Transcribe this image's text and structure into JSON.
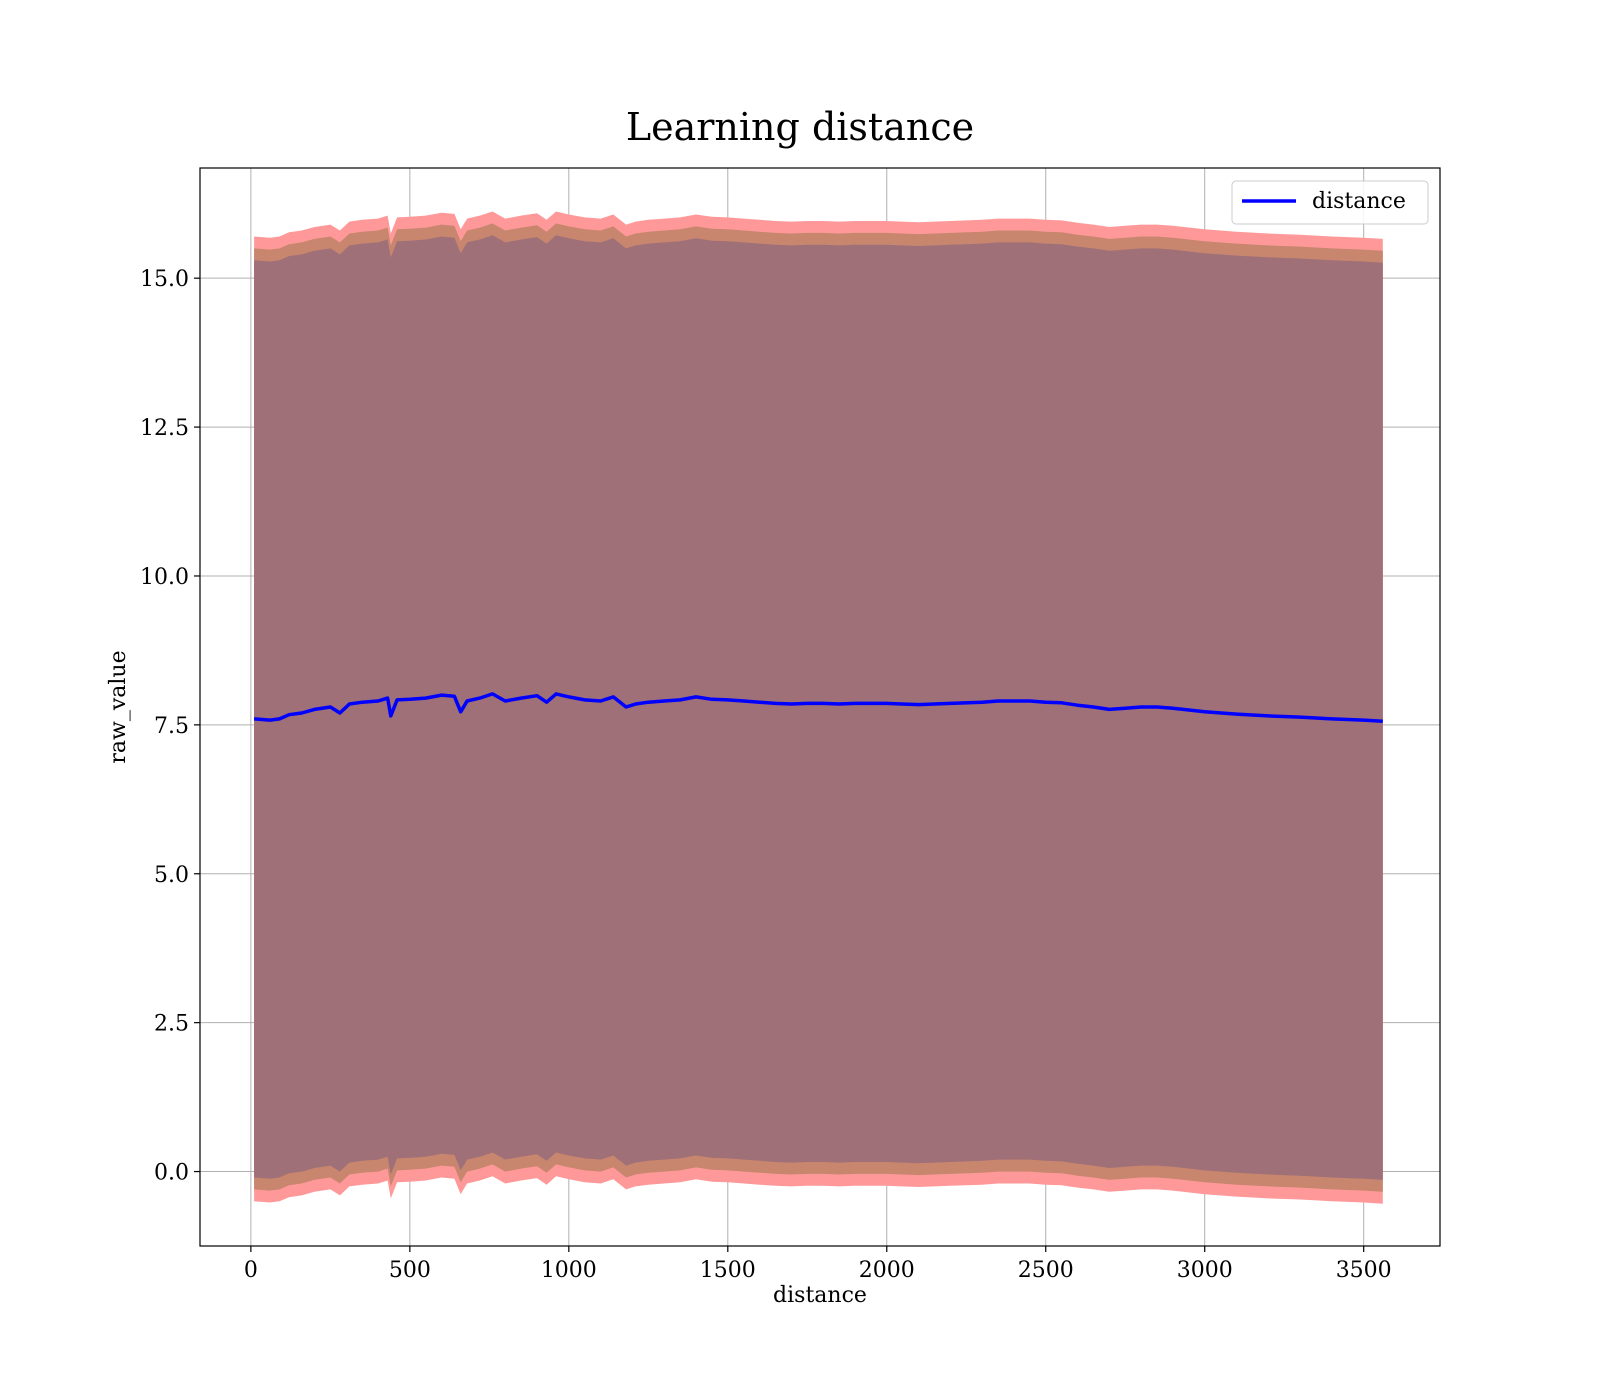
{
  "chart_data": {
    "type": "line",
    "title": "Learning distance",
    "xlabel": "distance",
    "ylabel": "raw_value",
    "xlim": [
      -160,
      3740
    ],
    "ylim": [
      -1.25,
      16.85
    ],
    "xticks": [
      0,
      500,
      1000,
      1500,
      2000,
      2500,
      3000,
      3500
    ],
    "xtick_labels": [
      "0",
      "500",
      "1000",
      "1500",
      "2000",
      "2500",
      "3000",
      "3500"
    ],
    "yticks": [
      0.0,
      2.5,
      5.0,
      7.5,
      10.0,
      12.5,
      15.0
    ],
    "ytick_labels": [
      "0.0",
      "2.5",
      "5.0",
      "7.5",
      "10.0",
      "12.5",
      "15.0"
    ],
    "grid": true,
    "legend_position": "top-right",
    "colors": {
      "line": "#0000ff",
      "band_outer": "#ff9999",
      "band_middle": "#c8866e",
      "band_inner": "#a07078"
    },
    "series": [
      {
        "name": "distance",
        "x": [
          10,
          60,
          90,
          120,
          160,
          200,
          250,
          280,
          310,
          350,
          400,
          430,
          440,
          460,
          500,
          550,
          600,
          640,
          660,
          680,
          720,
          760,
          800,
          850,
          900,
          930,
          960,
          1000,
          1050,
          1100,
          1140,
          1180,
          1210,
          1250,
          1300,
          1350,
          1400,
          1450,
          1500,
          1550,
          1600,
          1650,
          1700,
          1750,
          1800,
          1850,
          1900,
          1950,
          2000,
          2100,
          2200,
          2300,
          2350,
          2400,
          2450,
          2500,
          2550,
          2600,
          2650,
          2700,
          2750,
          2800,
          2850,
          2900,
          3000,
          3100,
          3200,
          3300,
          3400,
          3500,
          3560
        ],
        "y": [
          7.6,
          7.58,
          7.6,
          7.67,
          7.7,
          7.76,
          7.8,
          7.7,
          7.85,
          7.88,
          7.9,
          7.95,
          7.65,
          7.92,
          7.93,
          7.95,
          8.0,
          7.98,
          7.72,
          7.9,
          7.95,
          8.02,
          7.9,
          7.95,
          7.99,
          7.88,
          8.02,
          7.97,
          7.92,
          7.9,
          7.97,
          7.8,
          7.85,
          7.88,
          7.9,
          7.92,
          7.97,
          7.93,
          7.92,
          7.9,
          7.88,
          7.86,
          7.85,
          7.86,
          7.86,
          7.85,
          7.86,
          7.86,
          7.86,
          7.84,
          7.86,
          7.88,
          7.9,
          7.9,
          7.9,
          7.88,
          7.87,
          7.83,
          7.8,
          7.76,
          7.78,
          7.8,
          7.8,
          7.78,
          7.72,
          7.68,
          7.65,
          7.63,
          7.6,
          7.58,
          7.56
        ],
        "band_inner_half_width": 7.7,
        "band_middle_half_width": 7.9,
        "band_outer_half_width": 8.1
      }
    ]
  }
}
